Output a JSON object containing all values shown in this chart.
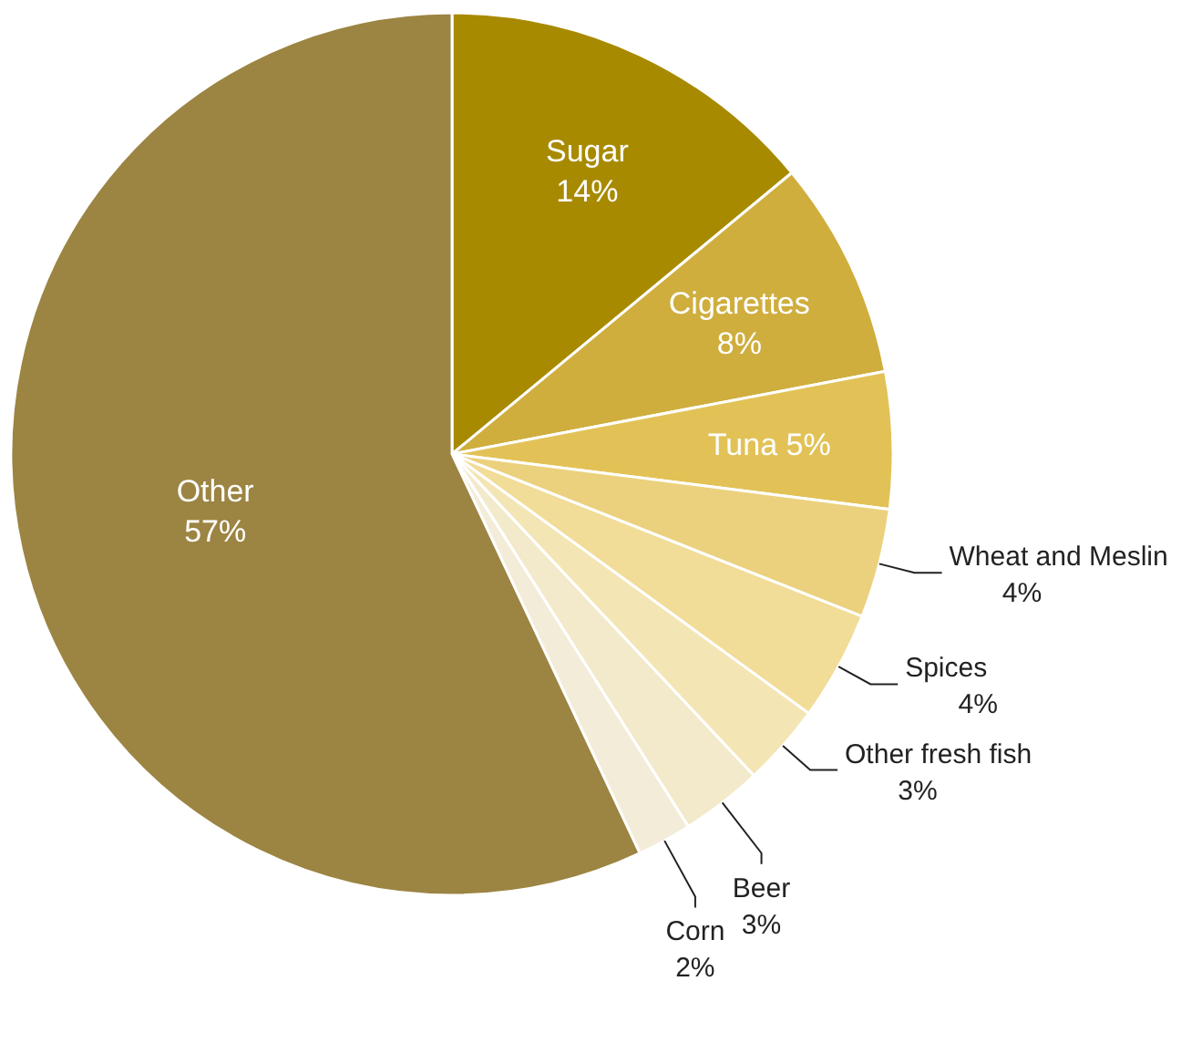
{
  "chart_data": {
    "type": "pie",
    "categories": [
      "Sugar",
      "Cigarettes",
      "Tuna",
      "Wheat and Meslin",
      "Spices",
      "Other fresh fish",
      "Beer",
      "Corn",
      "Other"
    ],
    "values": [
      14,
      8,
      5,
      4,
      4,
      3,
      3,
      2,
      57
    ],
    "value_labels": [
      "14%",
      "8%",
      "5%",
      "4%",
      "4%",
      "3%",
      "3%",
      "2%",
      "57%"
    ],
    "colors": [
      "#a88a00",
      "#cfae3e",
      "#e2c257",
      "#ebd17e",
      "#f1dc98",
      "#f4e5b5",
      "#f3e9cb",
      "#f3ecd9",
      "#9c8442"
    ]
  }
}
